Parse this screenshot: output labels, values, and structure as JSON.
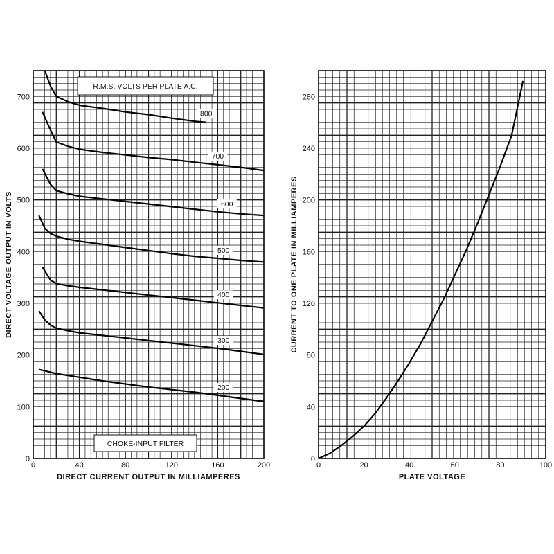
{
  "chart_data": [
    {
      "type": "line",
      "xlabel": "DIRECT CURRENT OUTPUT IN MILLIAMPERES",
      "ylabel": "DIRECT VOLTAGE OUTPUT IN VOLTS",
      "xlim": [
        0,
        200
      ],
      "ylim": [
        0,
        750
      ],
      "x_ticks": [
        0,
        40,
        80,
        120,
        160,
        200
      ],
      "y_ticks": [
        0,
        100,
        200,
        300,
        400,
        500,
        600,
        700
      ],
      "grid": true,
      "legend_title": "R.M.S. VOLTS PER PLATE A.C.",
      "annotation": "CHOKE-INPUT FILTER",
      "series": [
        {
          "name": "800",
          "x": [
            10,
            15,
            20,
            30,
            40,
            60,
            80,
            100,
            120,
            140,
            150
          ],
          "y": [
            750,
            720,
            700,
            690,
            683,
            677,
            670,
            665,
            658,
            652,
            650
          ]
        },
        {
          "name": "700",
          "x": [
            8,
            15,
            20,
            30,
            40,
            60,
            80,
            100,
            120,
            140,
            160,
            180,
            200
          ],
          "y": [
            670,
            635,
            612,
            604,
            598,
            592,
            587,
            582,
            578,
            573,
            568,
            563,
            557
          ]
        },
        {
          "name": "600",
          "x": [
            8,
            15,
            20,
            30,
            40,
            60,
            80,
            100,
            120,
            140,
            160,
            180,
            200
          ],
          "y": [
            560,
            530,
            518,
            512,
            507,
            502,
            497,
            492,
            487,
            482,
            477,
            473,
            470
          ]
        },
        {
          "name": "500",
          "x": [
            5,
            10,
            15,
            20,
            30,
            40,
            60,
            80,
            100,
            120,
            140,
            160,
            180,
            200
          ],
          "y": [
            470,
            445,
            435,
            430,
            424,
            420,
            414,
            408,
            402,
            396,
            391,
            387,
            383,
            380
          ]
        },
        {
          "name": "400",
          "x": [
            8,
            15,
            20,
            30,
            40,
            60,
            80,
            100,
            120,
            140,
            160,
            180,
            200
          ],
          "y": [
            370,
            345,
            338,
            334,
            331,
            326,
            321,
            316,
            311,
            306,
            301,
            296,
            291
          ]
        },
        {
          "name": "300",
          "x": [
            5,
            10,
            15,
            20,
            30,
            40,
            60,
            80,
            100,
            120,
            140,
            160,
            180,
            200
          ],
          "y": [
            285,
            268,
            258,
            252,
            247,
            243,
            238,
            233,
            228,
            223,
            218,
            213,
            207,
            201
          ]
        },
        {
          "name": "200",
          "x": [
            5,
            20,
            40,
            60,
            80,
            100,
            120,
            140,
            160,
            180,
            200
          ],
          "y": [
            172,
            164,
            157,
            150,
            144,
            138,
            133,
            128,
            122,
            116,
            110
          ]
        }
      ]
    },
    {
      "type": "line",
      "xlabel": "PLATE VOLTAGE",
      "ylabel": "CURRENT TO ONE PLATE IN MILLIAMPERES",
      "xlim": [
        0,
        100
      ],
      "ylim": [
        0,
        300
      ],
      "x_ticks": [
        0,
        20,
        40,
        60,
        80,
        100
      ],
      "y_ticks": [
        0,
        40,
        80,
        120,
        160,
        200,
        240,
        280
      ],
      "grid": true,
      "series": [
        {
          "name": "",
          "x": [
            0,
            5,
            10,
            15,
            20,
            25,
            30,
            35,
            40,
            45,
            50,
            55,
            60,
            65,
            70,
            75,
            80,
            85,
            90
          ],
          "y": [
            0,
            4,
            10,
            17,
            25,
            35,
            47,
            60,
            74,
            89,
            106,
            123,
            142,
            161,
            182,
            204,
            226,
            250,
            292
          ]
        }
      ]
    }
  ]
}
